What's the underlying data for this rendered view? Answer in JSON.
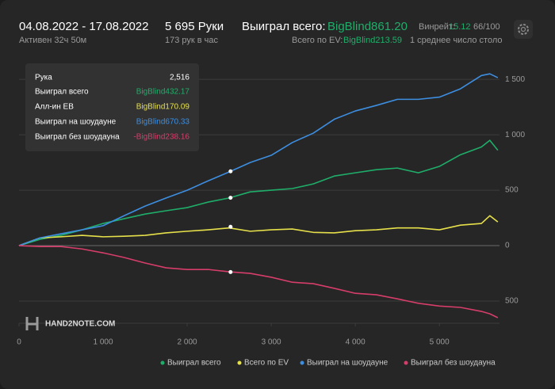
{
  "header": {
    "date_range": "04.08.2022 - 17.08.2022",
    "active": "Активен 32ч 50м",
    "hands": "5 695 Руки",
    "hands_per_hour": "173 рук в час",
    "won_label": "Выиграл всего:",
    "won_value": "BigBlind861.20",
    "ev_label": "Всего по EV:",
    "ev_value": "BigBlind213.59",
    "winrate_label": "Винрейт:",
    "winrate_value": "15.12",
    "winrate_of": "66/100",
    "tables": "1 среднее число столо"
  },
  "logo": "HAND2NOTE.COM",
  "chart_data": {
    "type": "line",
    "x": [
      0,
      250,
      500,
      750,
      1000,
      1250,
      1500,
      1750,
      2000,
      2250,
      2500,
      2750,
      3000,
      3250,
      3500,
      3750,
      4000,
      4250,
      4500,
      4750,
      5000,
      5250,
      5500,
      5600,
      5695
    ],
    "series": [
      {
        "name": "Выиграл всего",
        "color": "#1fae6a",
        "values": [
          0,
          57,
          93,
          143,
          200,
          243,
          285,
          315,
          343,
          393,
          430,
          485,
          500,
          515,
          557,
          628,
          657,
          685,
          700,
          657,
          715,
          820,
          890,
          950,
          861
        ]
      },
      {
        "name": "Всего по EV",
        "color": "#e6e04a",
        "values": [
          0,
          70,
          80,
          93,
          80,
          85,
          93,
          115,
          130,
          143,
          160,
          130,
          143,
          150,
          120,
          115,
          135,
          143,
          160,
          160,
          143,
          185,
          200,
          270,
          214
        ]
      },
      {
        "name": "Выиграл на шоудауне",
        "color": "#3d8ee0",
        "values": [
          0,
          70,
          107,
          143,
          180,
          270,
          357,
          430,
          500,
          585,
          665,
          750,
          815,
          930,
          1015,
          1140,
          1215,
          1265,
          1320,
          1320,
          1340,
          1415,
          1535,
          1550,
          1515
        ]
      },
      {
        "name": "Выиграл без шоудауна",
        "color": "#d63d6a",
        "values": [
          0,
          -8,
          -8,
          -30,
          -65,
          -107,
          -157,
          -200,
          -215,
          -215,
          -236,
          -250,
          -285,
          -330,
          -343,
          -385,
          -430,
          -443,
          -480,
          -520,
          -545,
          -557,
          -593,
          -615,
          -650
        ]
      }
    ],
    "xlim": [
      0,
      5715
    ],
    "ylim": [
      -700,
      1680
    ],
    "xticks": [
      0,
      {
        "value": 1000,
        "label": "1 000"
      },
      {
        "value": 2000,
        "label": "2 000"
      },
      {
        "value": 3000,
        "label": "3 000"
      },
      {
        "value": 4000,
        "label": "4 000"
      },
      {
        "value": 5000,
        "label": "5 000"
      }
    ],
    "yticks": [
      {
        "value": -500,
        "label": "500"
      },
      0,
      500,
      {
        "value": 1000,
        "label": "1 000"
      },
      {
        "value": 1500,
        "label": "1 500"
      }
    ],
    "grid": true,
    "tooltip": {
      "hand_label": "Рука",
      "hand": 2516,
      "hand_text": "2,516",
      "rows": [
        {
          "name": "Выиграл всего",
          "color": "#1fae6a",
          "value": 432.17,
          "label": "BigBlind432.17"
        },
        {
          "name": "Алл-ин EB",
          "color": "#e6e04a",
          "value": 170.09,
          "label": "BigBlind170.09"
        },
        {
          "name": "Выиграл на шоудауне",
          "color": "#3d8ee0",
          "value": 670.33,
          "label": "BigBlind670.33"
        },
        {
          "name": "Выиграл без шоудауна",
          "color": "#d63d6a",
          "value": -238.16,
          "label": "-BigBlind238.16"
        }
      ]
    }
  }
}
